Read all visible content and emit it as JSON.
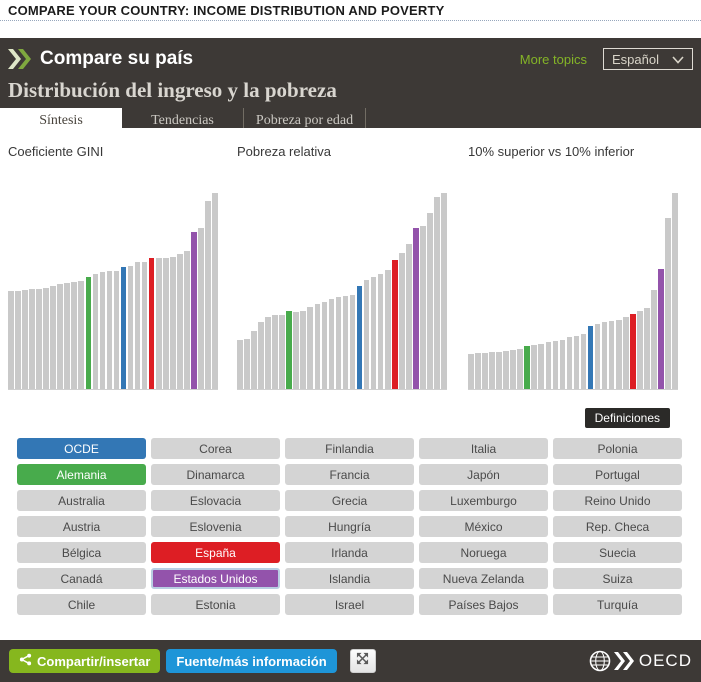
{
  "headline": "COMPARE YOUR COUNTRY: INCOME DISTRIBUTION AND POVERTY",
  "header": {
    "app_title": "Compare su país",
    "more_topics": "More topics",
    "language": "Español",
    "subtitle": "Distribución del ingreso y la pobreza"
  },
  "tabs": [
    {
      "label": "Síntesis",
      "active": true
    },
    {
      "label": "Tendencias",
      "active": false
    },
    {
      "label": "Pobreza por edad",
      "active": false
    }
  ],
  "chart_data": [
    {
      "type": "bar",
      "title": "Coeficiente GINI",
      "unit": "relative_height_percent",
      "heights": [
        49,
        49.2,
        49.5,
        49.8,
        50.1,
        50.7,
        51.4,
        52.4,
        53,
        53.5,
        54.2,
        56,
        57.4,
        58.3,
        58.8,
        59,
        61,
        61.3,
        63.4,
        63.7,
        65.3,
        65.4,
        65.7,
        66.2,
        67.6,
        68.9,
        78.6,
        80.7,
        94,
        98
      ],
      "highlights": {
        "11": "germany",
        "16": "ocde",
        "20": "spain",
        "26": "usa"
      }
    },
    {
      "type": "bar",
      "title": "Pobreza relativa",
      "unit": "relative_height_percent",
      "heights": [
        24.7,
        24.9,
        28.9,
        33.4,
        35.8,
        36.8,
        37.2,
        38.9,
        38.5,
        39.2,
        41,
        42.7,
        43.7,
        44.9,
        45.8,
        46.7,
        47.2,
        51.5,
        54.4,
        56.2,
        57.6,
        59.6,
        64.5,
        67.9,
        72.6,
        80.7,
        81.7,
        88.2,
        95.9,
        98
      ],
      "highlights": {
        "7": "germany",
        "17": "ocde",
        "22": "spain",
        "25": "usa"
      }
    },
    {
      "type": "bar",
      "title": "10% superior vs 10% inferior",
      "unit": "relative_height_percent",
      "heights": [
        17.5,
        18,
        18.2,
        18.4,
        18.6,
        18.9,
        19.4,
        20.1,
        21.3,
        21.9,
        22.7,
        23.3,
        23.9,
        24.6,
        25.8,
        26.4,
        27.5,
        31.6,
        32.4,
        33.4,
        34,
        34.6,
        36,
        37.5,
        39,
        40.5,
        49.5,
        60.2,
        85.4,
        98
      ],
      "highlights": {
        "8": "germany",
        "17": "ocde",
        "23": "spain",
        "27": "usa"
      }
    }
  ],
  "highlight_legend": {
    "ocde": "OCDE",
    "germany": "Alemania",
    "spain": "España",
    "usa": "Estados Unidos"
  },
  "definitions": {
    "label": "Definiciones"
  },
  "countries": {
    "columns": [
      [
        {
          "label": "OCDE",
          "variant": "ocde"
        },
        {
          "label": "Alemania",
          "variant": "germany"
        },
        {
          "label": "Australia",
          "variant": "default"
        },
        {
          "label": "Austria",
          "variant": "default"
        },
        {
          "label": "Bélgica",
          "variant": "default"
        },
        {
          "label": "Canadá",
          "variant": "default"
        },
        {
          "label": "Chile",
          "variant": "default"
        }
      ],
      [
        {
          "label": "Corea",
          "variant": "default"
        },
        {
          "label": "Dinamarca",
          "variant": "default"
        },
        {
          "label": "Eslovacia",
          "variant": "default"
        },
        {
          "label": "Eslovenia",
          "variant": "default"
        },
        {
          "label": "España",
          "variant": "spain"
        },
        {
          "label": "Estados Unidos",
          "variant": "usa",
          "selected": true
        },
        {
          "label": "Estonia",
          "variant": "default"
        }
      ],
      [
        {
          "label": "Finlandia",
          "variant": "default"
        },
        {
          "label": "Francia",
          "variant": "default"
        },
        {
          "label": "Grecia",
          "variant": "default"
        },
        {
          "label": "Hungría",
          "variant": "default"
        },
        {
          "label": "Irlanda",
          "variant": "default"
        },
        {
          "label": "Islandia",
          "variant": "default"
        },
        {
          "label": "Israel",
          "variant": "default"
        }
      ],
      [
        {
          "label": "Italia",
          "variant": "default"
        },
        {
          "label": "Japón",
          "variant": "default"
        },
        {
          "label": "Luxemburgo",
          "variant": "default"
        },
        {
          "label": "México",
          "variant": "default"
        },
        {
          "label": "Noruega",
          "variant": "default"
        },
        {
          "label": "Nueva Zelanda",
          "variant": "default"
        },
        {
          "label": "Países Bajos",
          "variant": "default"
        }
      ],
      [
        {
          "label": "Polonia",
          "variant": "default"
        },
        {
          "label": "Portugal",
          "variant": "default"
        },
        {
          "label": "Reino Unido",
          "variant": "default"
        },
        {
          "label": "Rep. Checa",
          "variant": "default"
        },
        {
          "label": "Suecia",
          "variant": "default"
        },
        {
          "label": "Suiza",
          "variant": "default"
        },
        {
          "label": "Turquía",
          "variant": "default"
        }
      ]
    ]
  },
  "footer": {
    "share_label": "Compartir/insertar",
    "source_label": "Fuente/más información",
    "logo_text": "OECD"
  },
  "icons": {
    "logo": "oecd-double-chevron",
    "language_dropdown": "chevron-down",
    "share": "share-nodes",
    "expand": "expand-arrows",
    "footer_logo": "globe-with-chevrons"
  },
  "colors": {
    "header_bg": "#3d3936",
    "bar_default": "#c9c9c9",
    "ocde": "#3377b5",
    "germany": "#48ab4c",
    "spain": "#dd1e24",
    "usa": "#9353ab",
    "more_topics_green": "#84b427",
    "share_green": "#86b71e",
    "source_blue": "#1e95d8",
    "definitions_bg": "#2b2a28"
  }
}
